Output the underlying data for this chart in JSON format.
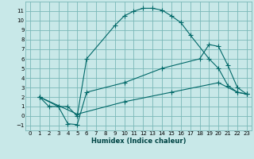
{
  "xlabel": "Humidex (Indice chaleur)",
  "bg_color": "#c8e8e8",
  "grid_color": "#7ab8b8",
  "line_color": "#006868",
  "xlim": [
    -0.5,
    23.5
  ],
  "ylim": [
    -1.5,
    12
  ],
  "xticks": [
    0,
    1,
    2,
    3,
    4,
    5,
    6,
    7,
    8,
    9,
    10,
    11,
    12,
    13,
    14,
    15,
    16,
    17,
    18,
    19,
    20,
    21,
    22,
    23
  ],
  "yticks": [
    -1,
    0,
    1,
    2,
    3,
    4,
    5,
    6,
    7,
    8,
    9,
    10,
    11
  ],
  "line1_x": [
    1,
    2,
    3,
    4,
    5,
    6,
    9,
    10,
    11,
    12,
    13,
    14,
    15,
    16,
    17,
    19,
    20,
    21,
    22,
    23
  ],
  "line1_y": [
    2,
    1,
    1,
    1,
    0,
    6,
    9.5,
    10.5,
    11,
    11.3,
    11.3,
    11.1,
    10.5,
    9.8,
    8.5,
    6,
    5,
    3.2,
    2.5,
    2.3
  ],
  "line2_x": [
    1,
    3,
    4,
    5,
    6,
    10,
    14,
    18,
    19,
    20,
    21,
    22,
    23
  ],
  "line2_y": [
    2,
    1,
    -0.8,
    -0.9,
    2.5,
    3.5,
    5.0,
    6.0,
    7.5,
    7.3,
    5.3,
    3.0,
    2.3
  ],
  "line3_x": [
    1,
    5,
    10,
    15,
    20,
    22,
    23
  ],
  "line3_y": [
    2,
    0.2,
    1.5,
    2.5,
    3.5,
    2.5,
    2.3
  ],
  "xlabel_fontsize": 6,
  "tick_fontsize": 5,
  "marker_size": 2.0,
  "line_width": 0.8
}
